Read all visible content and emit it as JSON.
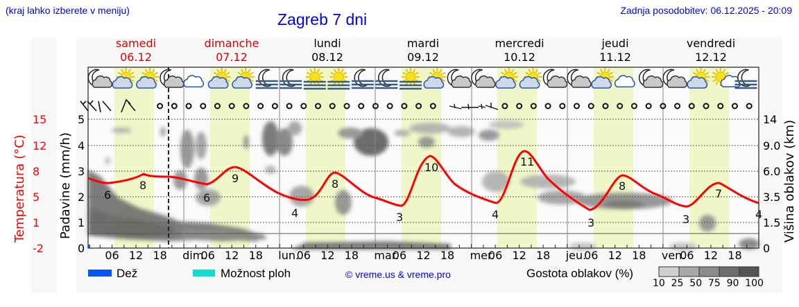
{
  "header": {
    "location_hint": "(kraj lahko izberete v meniju)",
    "title": "Zagreb 7 dni",
    "last_update": "Zadnja posodobitev: 06.12.2025 - 20:09"
  },
  "days": [
    {
      "name": "samedi",
      "date": "06.12",
      "color": "#dd0000"
    },
    {
      "name": "dimanche",
      "date": "07.12",
      "color": "#dd0000"
    },
    {
      "name": "lundi",
      "date": "08.12",
      "color": "#000000"
    },
    {
      "name": "mardi",
      "date": "09.12",
      "color": "#000000"
    },
    {
      "name": "mercredi",
      "date": "10.12",
      "color": "#000000"
    },
    {
      "name": "jeudi",
      "date": "11.12",
      "color": "#000000"
    },
    {
      "name": "vendredi",
      "date": "12.12",
      "color": "#000000"
    }
  ],
  "axes": {
    "temp_label": "Temperatura (°C)",
    "temp_ticks": [
      "15",
      "12",
      "8",
      "5",
      "1",
      "-2"
    ],
    "precip_label": "Padavine (mm/h)",
    "precip_ticks": [
      "5",
      "4",
      "3",
      "2",
      "1",
      "0"
    ],
    "cloud_label": "Višina oblakov (km)",
    "cloud_ticks": [
      "14",
      "9.0",
      "6.0",
      "3.5",
      "1.5",
      "0"
    ],
    "x_ticks": [
      "06",
      "12",
      "18",
      "dim.",
      "06",
      "12",
      "18",
      "lun.",
      "06",
      "12",
      "18",
      "mar.",
      "06",
      "12",
      "18",
      "mer.",
      "06",
      "12",
      "18",
      "jeu.",
      "06",
      "12",
      "18",
      "ven.",
      "06",
      "12",
      "18"
    ]
  },
  "legend": {
    "rain": "Dež",
    "rain_color": "#0055ff",
    "showers": "Možnost ploh",
    "showers_color": "#11ddcc",
    "copyright": "© vreme.us & vreme.pro",
    "cloud_density": "Gostota oblakov (%)",
    "cloud_scale": [
      "10",
      "25",
      "50",
      "75",
      "90",
      "100"
    ]
  },
  "icons": [
    "moon-cloud-icon",
    "sun-cloud-icon",
    "sun-cloud-icon",
    "moon-cloud-icon",
    "cloud-icon",
    "sun-cloud-icon",
    "sun-cloud-icon",
    "moon-fog-icon",
    "moon-fog-icon",
    "sun-fog-icon",
    "sun-fog-icon",
    "moon-fog-icon",
    "moon-fog-icon",
    "sun-fog-icon",
    "sun-cloud-icon",
    "moon-cloud-icon",
    "moon-cloud-icon",
    "sun-cloud-icon",
    "sun-cloud-icon",
    "moon-cloud-icon",
    "moon-cloud-icon",
    "sun-cloud-icon",
    "cloud-icon",
    "moon-cloud-icon",
    "moon-cloud-icon",
    "sun-cloud-icon",
    "sun-small-cloud-icon",
    "moon-fog-icon"
  ],
  "chart_data": {
    "type": "line",
    "title": "Zagreb 7 dni",
    "xlabel": "",
    "ylabel": "Temperatura (°C)",
    "ylim": [
      -2,
      15
    ],
    "secondary_axes": {
      "precip_mm_h": [
        0,
        5
      ],
      "cloud_height_km": [
        0,
        1.5,
        3.5,
        6.0,
        9.0,
        14
      ]
    },
    "series": [
      {
        "name": "Temperatura",
        "color": "#ff0000",
        "points_hours": [
          0,
          9,
          21,
          30,
          45,
          57,
          72,
          83,
          96,
          106,
          120,
          131,
          144,
          155,
          168
        ],
        "values": [
          5.6,
          5.2,
          7.2,
          6.8,
          5.3,
          8.7,
          3.8,
          7.8,
          3.0,
          10.0,
          3.9,
          11.0,
          2.9,
          7.7,
          3.7
        ]
      }
    ],
    "annotations": [
      {
        "text": "6",
        "day": "06.12"
      },
      {
        "text": "8",
        "day": "06.12"
      },
      {
        "text": "6",
        "day": "07.12"
      },
      {
        "text": "9",
        "day": "07.12"
      },
      {
        "text": "4",
        "day": "08.12"
      },
      {
        "text": "8",
        "day": "08.12"
      },
      {
        "text": "3",
        "day": "09.12"
      },
      {
        "text": "10",
        "day": "09.12"
      },
      {
        "text": "4",
        "day": "10.12"
      },
      {
        "text": "11",
        "day": "10.12"
      },
      {
        "text": "3",
        "day": "11.12"
      },
      {
        "text": "8",
        "day": "11.12"
      },
      {
        "text": "3",
        "day": "12.12"
      },
      {
        "text": "7",
        "day": "12.12"
      },
      {
        "text": "4",
        "day": "13.12"
      }
    ],
    "grid": true,
    "legend_position": "bottom"
  }
}
